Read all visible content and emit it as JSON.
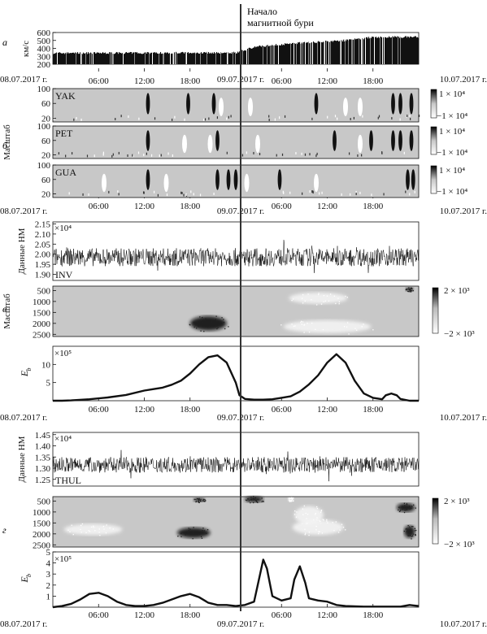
{
  "annotation": {
    "line1": "Начало",
    "line2": "магнитной бури"
  },
  "time_axis": {
    "date_start": "08.07.2017 г.",
    "date_mid": "09.07.2017 г.",
    "date_end": "10.07.2017 г.",
    "hour_ticks": [
      "06:00",
      "12:00",
      "18:00",
      "06:00",
      "12:00",
      "18:00"
    ]
  },
  "panel_letters": {
    "a": "а",
    "b": "б",
    "v": "в",
    "g": "г"
  },
  "colors": {
    "ink": "#111111",
    "panel_bg": "#c8c8c8",
    "storm_line": "#333333"
  },
  "chart_data": [
    {
      "id": "solar_wind",
      "type": "bar",
      "ylabel": "км/с",
      "yticks": [
        "200",
        "300",
        "400",
        "500",
        "600"
      ],
      "ylim": [
        200,
        600
      ],
      "segments": [
        {
          "x": [
            0,
            1
          ],
          "y": [
            340,
            345
          ]
        },
        {
          "x": [
            1,
            1.1
          ],
          "y": [
            345,
            420
          ]
        },
        {
          "x": [
            1.1,
            1.35
          ],
          "y": [
            420,
            470
          ]
        },
        {
          "x": [
            1.35,
            1.6
          ],
          "y": [
            470,
            500
          ]
        },
        {
          "x": [
            1.6,
            1.75
          ],
          "y": [
            500,
            540
          ]
        },
        {
          "x": [
            1.75,
            2
          ],
          "y": [
            540,
            545
          ]
        }
      ]
    },
    {
      "id": "wavelet_stations",
      "type": "heatmap",
      "ylabel": "Масштаб",
      "yticks": [
        "20",
        "60",
        "100"
      ],
      "colorbar_top": "1 × 10⁴",
      "colorbar_bottom": "−1 × 10⁴",
      "stations": [
        {
          "name": "YAK",
          "dark": [
            0.26,
            0.37,
            0.44,
            0.72,
            0.93,
            0.95,
            0.98
          ],
          "light": [
            0.46,
            0.54,
            0.8,
            0.84
          ]
        },
        {
          "name": "PET",
          "dark": [
            0.26,
            0.45,
            0.77,
            0.87,
            0.93,
            0.95,
            0.98
          ],
          "light": [
            0.36,
            0.43,
            0.56,
            0.84
          ]
        },
        {
          "name": "GUA",
          "dark": [
            0.26,
            0.45,
            0.48,
            0.5,
            0.62,
            0.97,
            0.985
          ],
          "light": [
            0.14,
            0.31,
            0.53,
            0.72
          ]
        }
      ]
    },
    {
      "id": "inv_counts",
      "type": "line",
      "station": "INV",
      "ylabel": "Данные НМ",
      "multiplier": "×10⁴",
      "yticks": [
        "1.90",
        "1.95",
        "2.00",
        "2.05",
        "2.10",
        "2.15"
      ],
      "ylim": [
        1.87,
        2.16
      ],
      "mean": 1.985,
      "noise": 0.045
    },
    {
      "id": "inv_scale",
      "type": "heatmap",
      "ylabel": "Масштаб",
      "yticks": [
        "500",
        "1000",
        "1500",
        "2000",
        "2500"
      ],
      "colorbar_top": "2 × 10³",
      "colorbar_bottom": "−2 × 10³",
      "blobs": [
        {
          "x": 0.85,
          "y": 2000,
          "rx": 0.1,
          "ry": 330,
          "tone": "dark"
        },
        {
          "x": 1.45,
          "y": 850,
          "rx": 0.16,
          "ry": 260,
          "tone": "light"
        },
        {
          "x": 1.5,
          "y": 2150,
          "rx": 0.24,
          "ry": 300,
          "tone": "light"
        },
        {
          "x": 1.95,
          "y": 450,
          "rx": 0.02,
          "ry": 90,
          "tone": "dark"
        }
      ]
    },
    {
      "id": "inv_energy",
      "type": "line",
      "ylabel": "E",
      "ylabel_sub": "b",
      "multiplier": "×10⁵",
      "yticks": [
        "5",
        "10"
      ],
      "ylim": [
        0,
        15
      ],
      "x": [
        0,
        0.05,
        0.1,
        0.2,
        0.3,
        0.4,
        0.5,
        0.55,
        0.6,
        0.65,
        0.7,
        0.75,
        0.8,
        0.85,
        0.9,
        0.95,
        1.0,
        1.02,
        1.05,
        1.1,
        1.15,
        1.2,
        1.25,
        1.3,
        1.35,
        1.4,
        1.45,
        1.5,
        1.55,
        1.6,
        1.65,
        1.7,
        1.75,
        1.8,
        1.82,
        1.85,
        1.88,
        1.9,
        1.95,
        2.0
      ],
      "y": [
        0,
        0,
        0.1,
        0.4,
        0.9,
        1.6,
        2.8,
        3.2,
        3.6,
        4.4,
        5.5,
        7.5,
        10.0,
        12.0,
        12.5,
        10.5,
        5.0,
        1.5,
        0.5,
        0.3,
        0.3,
        0.4,
        0.8,
        1.2,
        2.5,
        4.5,
        7.0,
        10.5,
        12.8,
        10.5,
        5.5,
        2.0,
        0.8,
        0.4,
        1.5,
        2.0,
        1.5,
        0.5,
        0,
        0
      ]
    },
    {
      "id": "thul_counts",
      "type": "line",
      "station": "THUL",
      "ylabel": "Данные НМ",
      "multiplier": "×10⁴",
      "yticks": [
        "1.25",
        "1.30",
        "1.35",
        "1.40",
        "1.45"
      ],
      "ylim": [
        1.22,
        1.46
      ],
      "mean": 1.315,
      "noise": 0.035
    },
    {
      "id": "thul_scale",
      "type": "heatmap",
      "yticks": [
        "500",
        "1000",
        "1500",
        "2000",
        "2500"
      ],
      "colorbar_top": "2 × 10³",
      "colorbar_bottom": "−2 × 10³",
      "blobs": [
        {
          "x": 0.22,
          "y": 1800,
          "rx": 0.16,
          "ry": 260,
          "tone": "light"
        },
        {
          "x": 0.77,
          "y": 1950,
          "rx": 0.09,
          "ry": 240,
          "tone": "dark"
        },
        {
          "x": 0.8,
          "y": 450,
          "rx": 0.03,
          "ry": 90,
          "tone": "dark"
        },
        {
          "x": 1.1,
          "y": 420,
          "rx": 0.05,
          "ry": 140,
          "tone": "dark"
        },
        {
          "x": 1.4,
          "y": 1150,
          "rx": 0.08,
          "ry": 420,
          "tone": "light"
        },
        {
          "x": 1.45,
          "y": 1700,
          "rx": 0.14,
          "ry": 350,
          "tone": "light"
        },
        {
          "x": 1.3,
          "y": 400,
          "rx": 0.015,
          "ry": 110,
          "tone": "light"
        },
        {
          "x": 1.93,
          "y": 800,
          "rx": 0.05,
          "ry": 200,
          "tone": "dark"
        },
        {
          "x": 1.95,
          "y": 1900,
          "rx": 0.03,
          "ry": 280,
          "tone": "dark"
        }
      ]
    },
    {
      "id": "thul_energy",
      "type": "line",
      "ylabel": "E",
      "ylabel_sub": "b",
      "multiplier": "×10⁵",
      "yticks": [
        "1",
        "2",
        "3",
        "4",
        "5"
      ],
      "ylim": [
        0,
        5
      ],
      "x": [
        0,
        0.05,
        0.1,
        0.15,
        0.2,
        0.25,
        0.3,
        0.35,
        0.4,
        0.45,
        0.5,
        0.55,
        0.6,
        0.65,
        0.7,
        0.75,
        0.8,
        0.85,
        0.9,
        0.95,
        1.0,
        1.05,
        1.1,
        1.12,
        1.15,
        1.17,
        1.2,
        1.25,
        1.3,
        1.32,
        1.35,
        1.38,
        1.4,
        1.45,
        1.5,
        1.55,
        1.6,
        1.7,
        1.8,
        1.9,
        1.95,
        2.0
      ],
      "y": [
        0,
        0.1,
        0.3,
        0.7,
        1.2,
        1.3,
        1.0,
        0.5,
        0.2,
        0.1,
        0.1,
        0.2,
        0.4,
        0.7,
        1.0,
        1.2,
        0.9,
        0.4,
        0.2,
        0.2,
        0.1,
        0.2,
        0.5,
        2.0,
        4.3,
        3.5,
        1.0,
        0.6,
        0.8,
        2.5,
        3.7,
        2.2,
        0.8,
        0.6,
        0.5,
        0.2,
        0.1,
        0.05,
        0.05,
        0.05,
        0.2,
        0.1
      ]
    }
  ]
}
